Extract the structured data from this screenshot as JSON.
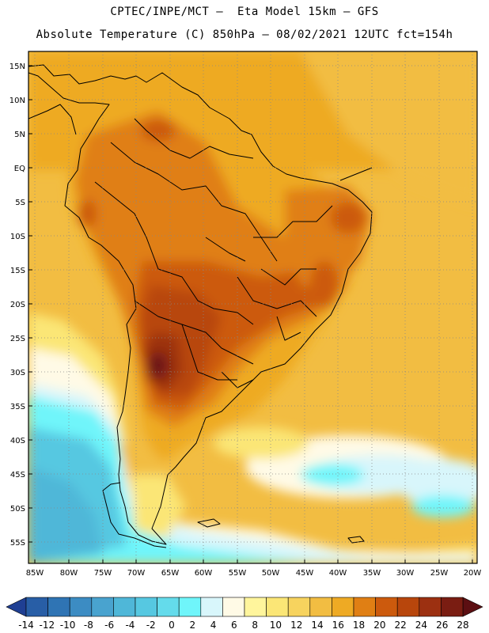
{
  "title": {
    "line1": "CPTEC/INPE/MCT —  Eta Model 15km — GFS",
    "line2": "Absolute Temperature (C) 850hPa — 08/02/2021 12UTC fct=154h"
  },
  "axes": {
    "lat_labels": [
      "15N",
      "10N",
      "5N",
      "EQ",
      "5S",
      "10S",
      "15S",
      "20S",
      "25S",
      "30S",
      "35S",
      "40S",
      "45S",
      "50S",
      "55S"
    ],
    "lon_labels": [
      "85W",
      "80W",
      "75W",
      "70W",
      "65W",
      "60W",
      "55W",
      "50W",
      "45W",
      "40W",
      "35W",
      "30W",
      "25W",
      "20W"
    ]
  },
  "colorbar": {
    "labels": [
      "-14",
      "-12",
      "-10",
      "-8",
      "-6",
      "-4",
      "-2",
      "0",
      "2",
      "4",
      "6",
      "8",
      "10",
      "12",
      "14",
      "16",
      "18",
      "20",
      "22",
      "24",
      "26",
      "28"
    ],
    "colors": [
      "#1f3f93",
      "#285ea6",
      "#2f74b4",
      "#3c8cc3",
      "#49a3cf",
      "#4fb7d8",
      "#56c8e1",
      "#64dbeb",
      "#6ff5fa",
      "#d8f6fb",
      "#fffae6",
      "#fff59c",
      "#fbe676",
      "#f7d35e",
      "#f2bd42",
      "#eeaa24",
      "#e07f14",
      "#cc5a0d",
      "#b8460c",
      "#9c3011",
      "#7a1d12",
      "#5c0f12"
    ]
  },
  "icons": {
    "left_arrow": "triangle-left-icon",
    "right_arrow": "triangle-right-icon"
  }
}
